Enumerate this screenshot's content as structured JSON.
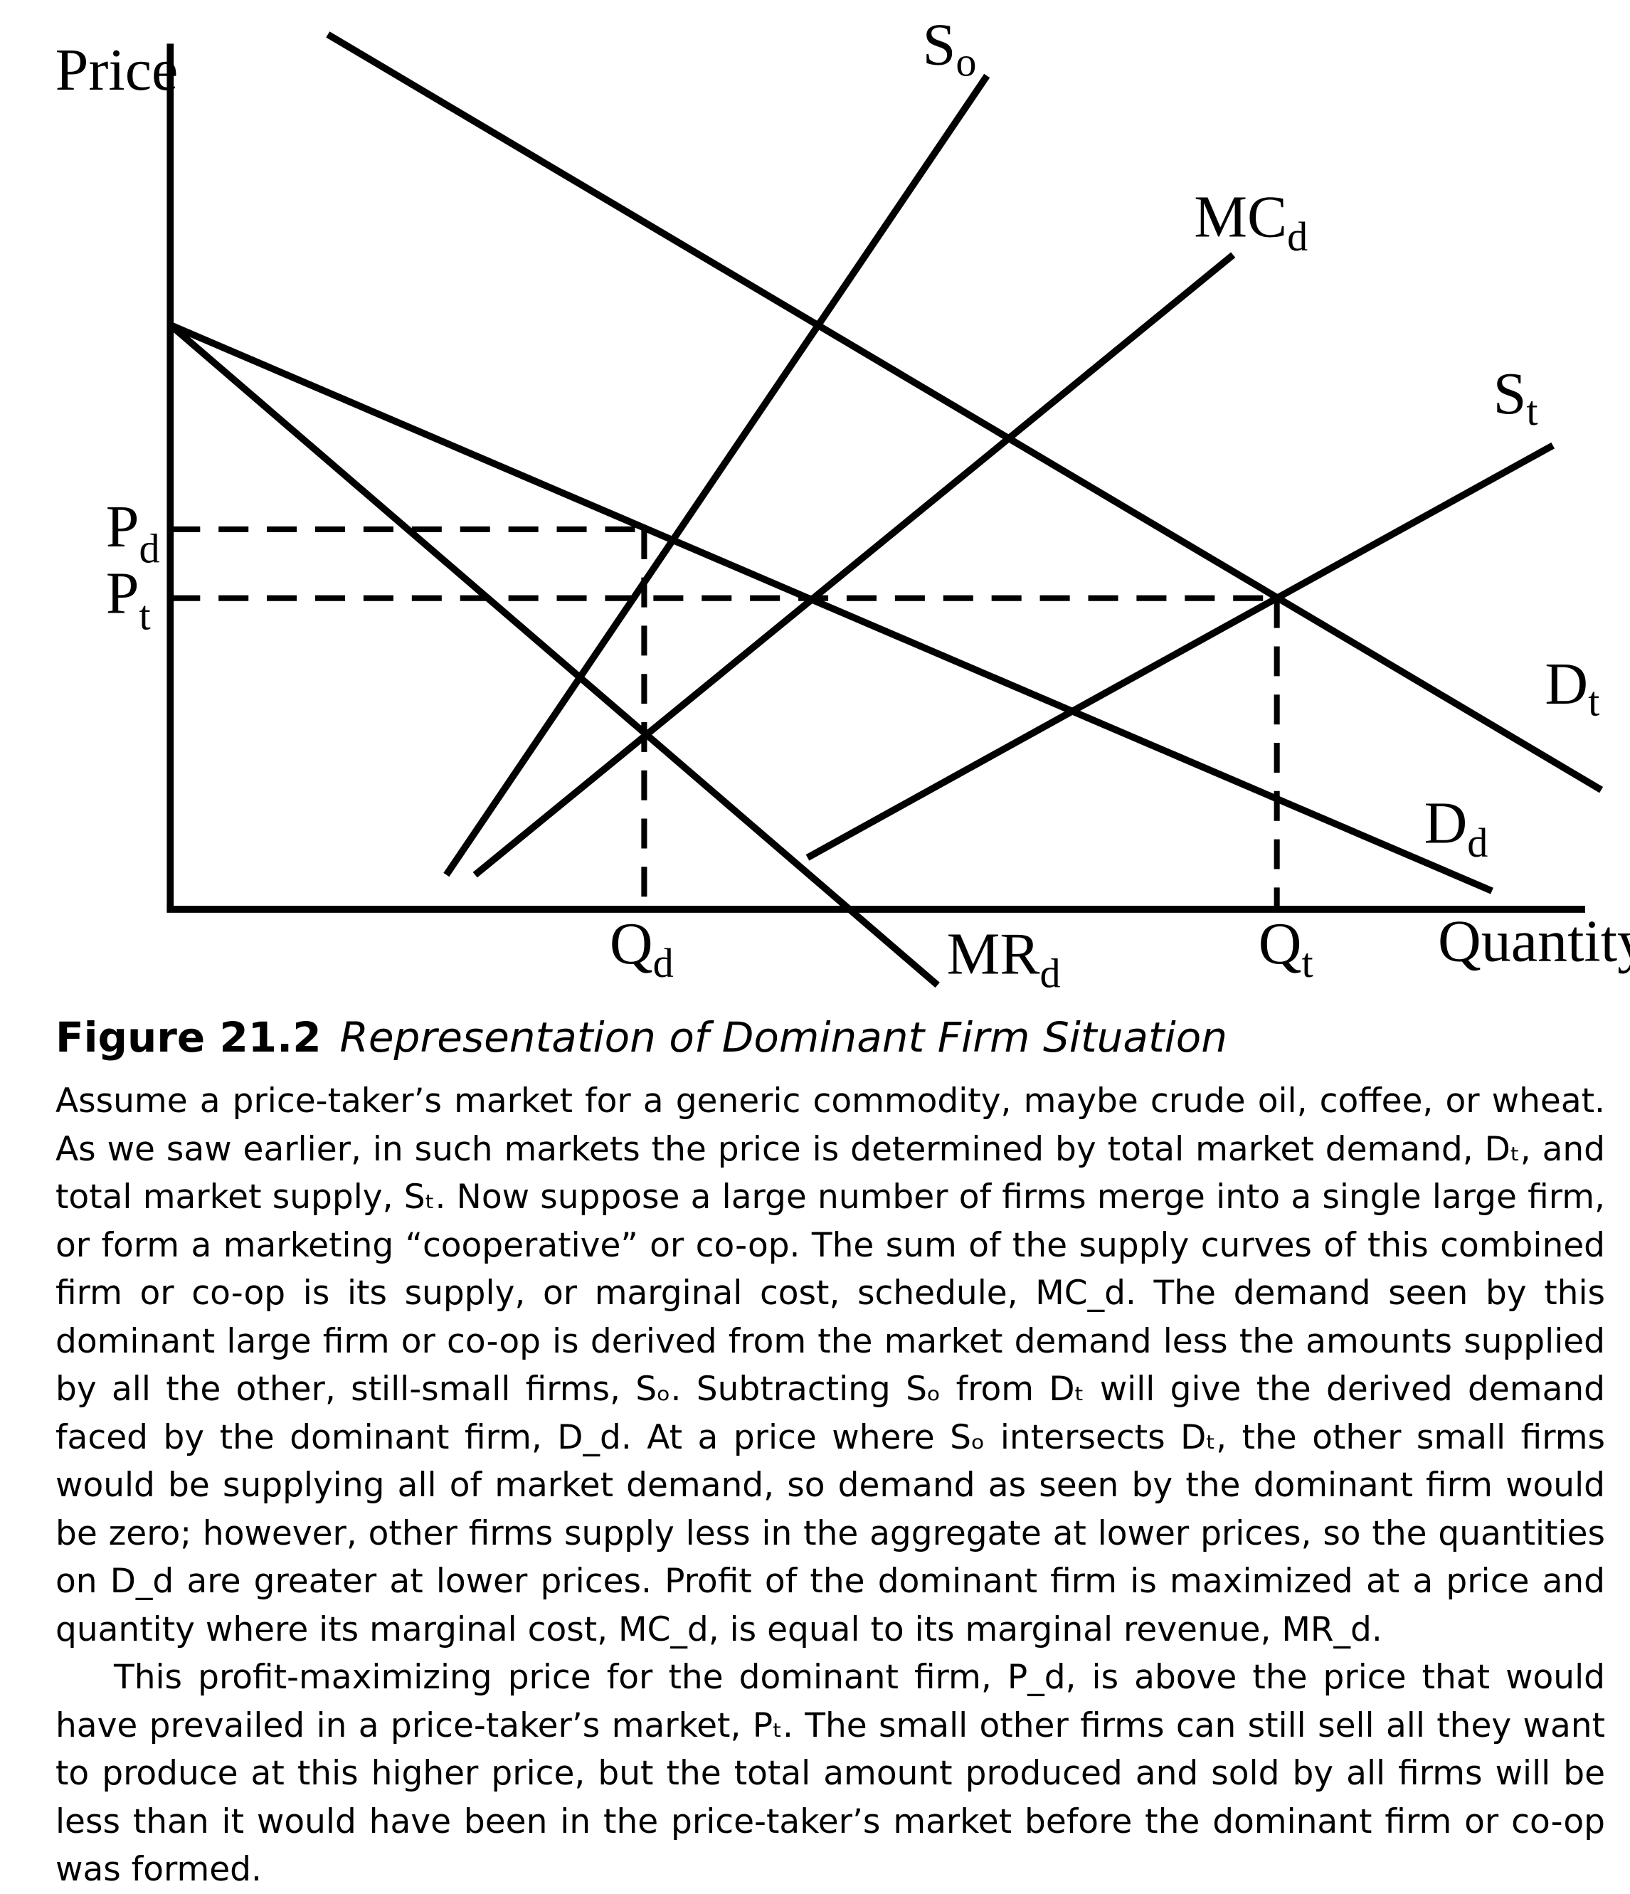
{
  "chart_data": {
    "type": "line",
    "xlabel": "Quantity",
    "ylabel": "Price",
    "tick_labels": {
      "y": [
        {
          "main": "P",
          "sub": "d"
        },
        {
          "main": "P",
          "sub": "t"
        }
      ],
      "x": [
        {
          "main": "Q",
          "sub": "d"
        },
        {
          "main": "Q",
          "sub": "t"
        }
      ]
    },
    "curves": [
      {
        "name": "S",
        "sub": "o",
        "points": [
          [
            388,
            762
          ],
          [
            858,
            66
          ]
        ]
      },
      {
        "name": "MC",
        "sub": "d",
        "points": [
          [
            413,
            762
          ],
          [
            1072,
            222
          ]
        ]
      },
      {
        "name": "S",
        "sub": "t",
        "points": [
          [
            702,
            747
          ],
          [
            1350,
            388
          ]
        ]
      },
      {
        "name": "D",
        "sub": "t",
        "points": [
          [
            285,
            30
          ],
          [
            1392,
            688
          ]
        ]
      },
      {
        "name": "D",
        "sub": "d",
        "points": [
          [
            148,
            283
          ],
          [
            1297,
            776
          ]
        ]
      },
      {
        "name": "MR",
        "sub": "d",
        "points": [
          [
            148,
            283
          ],
          [
            815,
            858
          ]
        ]
      }
    ],
    "reference_lines": [
      {
        "type": "horizontal",
        "label": "Pd",
        "from": [
          148,
          461
        ],
        "to": [
          560,
          461
        ]
      },
      {
        "type": "horizontal",
        "label": "Pt",
        "from": [
          148,
          521
        ],
        "to": [
          1110,
          521
        ]
      },
      {
        "type": "vertical",
        "label": "Qd",
        "from": [
          560,
          461
        ],
        "to": [
          560,
          790
        ]
      },
      {
        "type": "vertical",
        "label": "Qt",
        "from": [
          1110,
          521
        ],
        "to": [
          1110,
          790
        ]
      }
    ],
    "axis_ranges": {
      "x": [
        148,
        1380
      ],
      "y": [
        40,
        792
      ]
    },
    "grid": false,
    "legend": "none"
  },
  "caption": {
    "figure_number": "Figure 21.2",
    "figure_title": "Representation of Dominant Firm Situation",
    "paragraph_1": "Assume a price-taker’s market for a generic commodity, maybe crude oil, coffee, or wheat. As we saw earlier, in such markets the price is determined by total market demand, Dₜ, and total market supply, Sₜ. Now suppose a large number of firms merge into a single large firm, or form a marketing “cooperative” or co-op. The sum of the supply curves of this combined firm or co-op is its supply, or marginal cost, schedule, MC_d. The demand seen by this dominant large firm or co-op is derived from the market demand less the amounts supplied by all the other, still-small firms, Sₒ. Subtracting Sₒ from Dₜ will give the derived demand faced by the dominant firm, D_d. At a price where Sₒ intersects Dₜ, the other small firms would be supplying all of market demand, so demand as seen by the dominant firm would be zero; however, other firms supply less in the aggregate at lower prices, so the quantities on D_d are greater at lower prices. Profit of the dominant firm is maximized at a price and quantity where its marginal cost, MC_d, is equal to its marginal revenue, MR_d.",
    "paragraph_2": "This profit-maximizing price for the dominant firm, P_d, is above the price that would have prevailed in a price-taker’s market, Pₜ. The small other firms can still sell all they want to produce at this higher price, but the total amount produced and sold by all firms will be less than it would have been in the price-taker’s market before the dominant firm or co-op was formed."
  }
}
